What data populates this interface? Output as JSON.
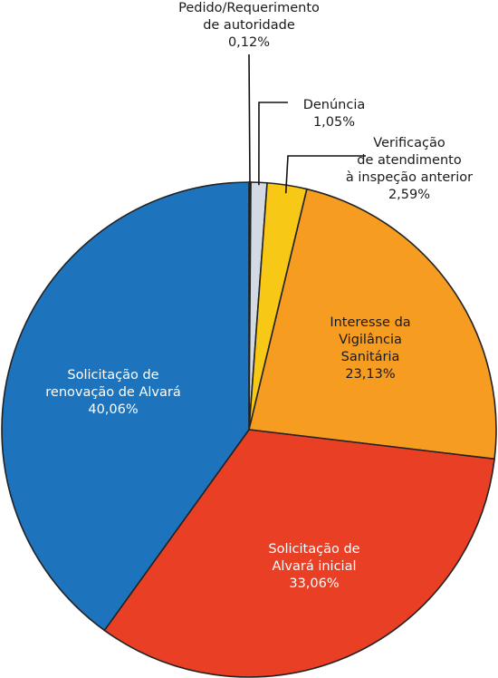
{
  "chart_data": {
    "type": "pie",
    "title": "",
    "slices": [
      {
        "label": [
          "Pedido/Requerimento",
          "de autoridade"
        ],
        "value": 0.12,
        "value_label": "0,12%",
        "color": "#1a1a1a",
        "text_color": "#1a1a1a",
        "label_position": "outside-top",
        "leader": true
      },
      {
        "label": [
          "Denúncia"
        ],
        "value": 1.05,
        "value_label": "1,05%",
        "color": "#d3dae3",
        "text_color": "#1a1a1a",
        "label_position": "outside-top-right",
        "leader": true
      },
      {
        "label": [
          "Verificação",
          "de atendimento",
          "à inspeção anterior"
        ],
        "value": 2.59,
        "value_label": "2,59%",
        "color": "#f8c817",
        "text_color": "#1a1a1a",
        "label_position": "outside-top-right",
        "leader": true
      },
      {
        "label": [
          "Interesse da",
          "Vigilância",
          "Sanitária"
        ],
        "value": 23.13,
        "value_label": "23,13%",
        "color": "#f59c21",
        "text_color": "#1a1a1a",
        "label_position": "inside",
        "leader": false
      },
      {
        "label": [
          "Solicitação de",
          "Alvará inicial"
        ],
        "value": 33.06,
        "value_label": "33,06%",
        "color": "#e83f25",
        "text_color": "#ffffff",
        "label_position": "inside",
        "leader": false
      },
      {
        "label": [
          "Solicitação de",
          "renovação de Alvará"
        ],
        "value": 40.06,
        "value_label": "40,06%",
        "color": "#1d74bd",
        "text_color": "#ffffff",
        "label_position": "inside",
        "leader": false
      }
    ]
  }
}
